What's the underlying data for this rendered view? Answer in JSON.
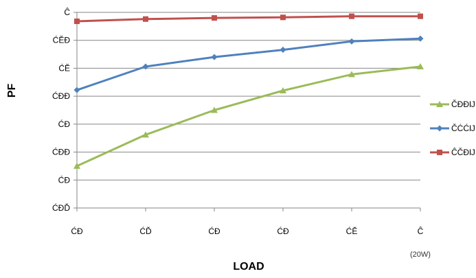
{
  "chart_data": {
    "type": "line",
    "xlabel": "LOAD",
    "ylabel": "PF",
    "x_unit_note": "(20W)",
    "categories": [
      "ĆĐ",
      "ĆĎ",
      "ĆĐ",
      "ĆĐ",
      "ĆĔ",
      "Ĉ"
    ],
    "y_tick_labels": [
      "ĆĐĎ",
      "ĆĐ",
      "ĆĐĐ",
      "ĆĐ",
      "ĆĐĐ",
      "ĆĔ",
      "ĆĔĐ",
      "Ĉ"
    ],
    "ylim": [
      0.65,
      1.0
    ],
    "grid": true,
    "legend_position": "right",
    "series": [
      {
        "name": "ČĐĐĲ",
        "color": "#9BBB59",
        "marker": "triangle",
        "values": [
          0.725,
          0.781,
          0.825,
          0.86,
          0.889,
          0.903
        ]
      },
      {
        "name": "ČĊĆĲ",
        "color": "#4F81BD",
        "marker": "diamond",
        "values": [
          0.861,
          0.903,
          0.92,
          0.933,
          0.948,
          0.953
        ]
      },
      {
        "name": "ĈČĐĲ",
        "color": "#C0504D",
        "marker": "square",
        "values": [
          0.984,
          0.988,
          0.99,
          0.991,
          0.993,
          0.993
        ]
      }
    ]
  }
}
